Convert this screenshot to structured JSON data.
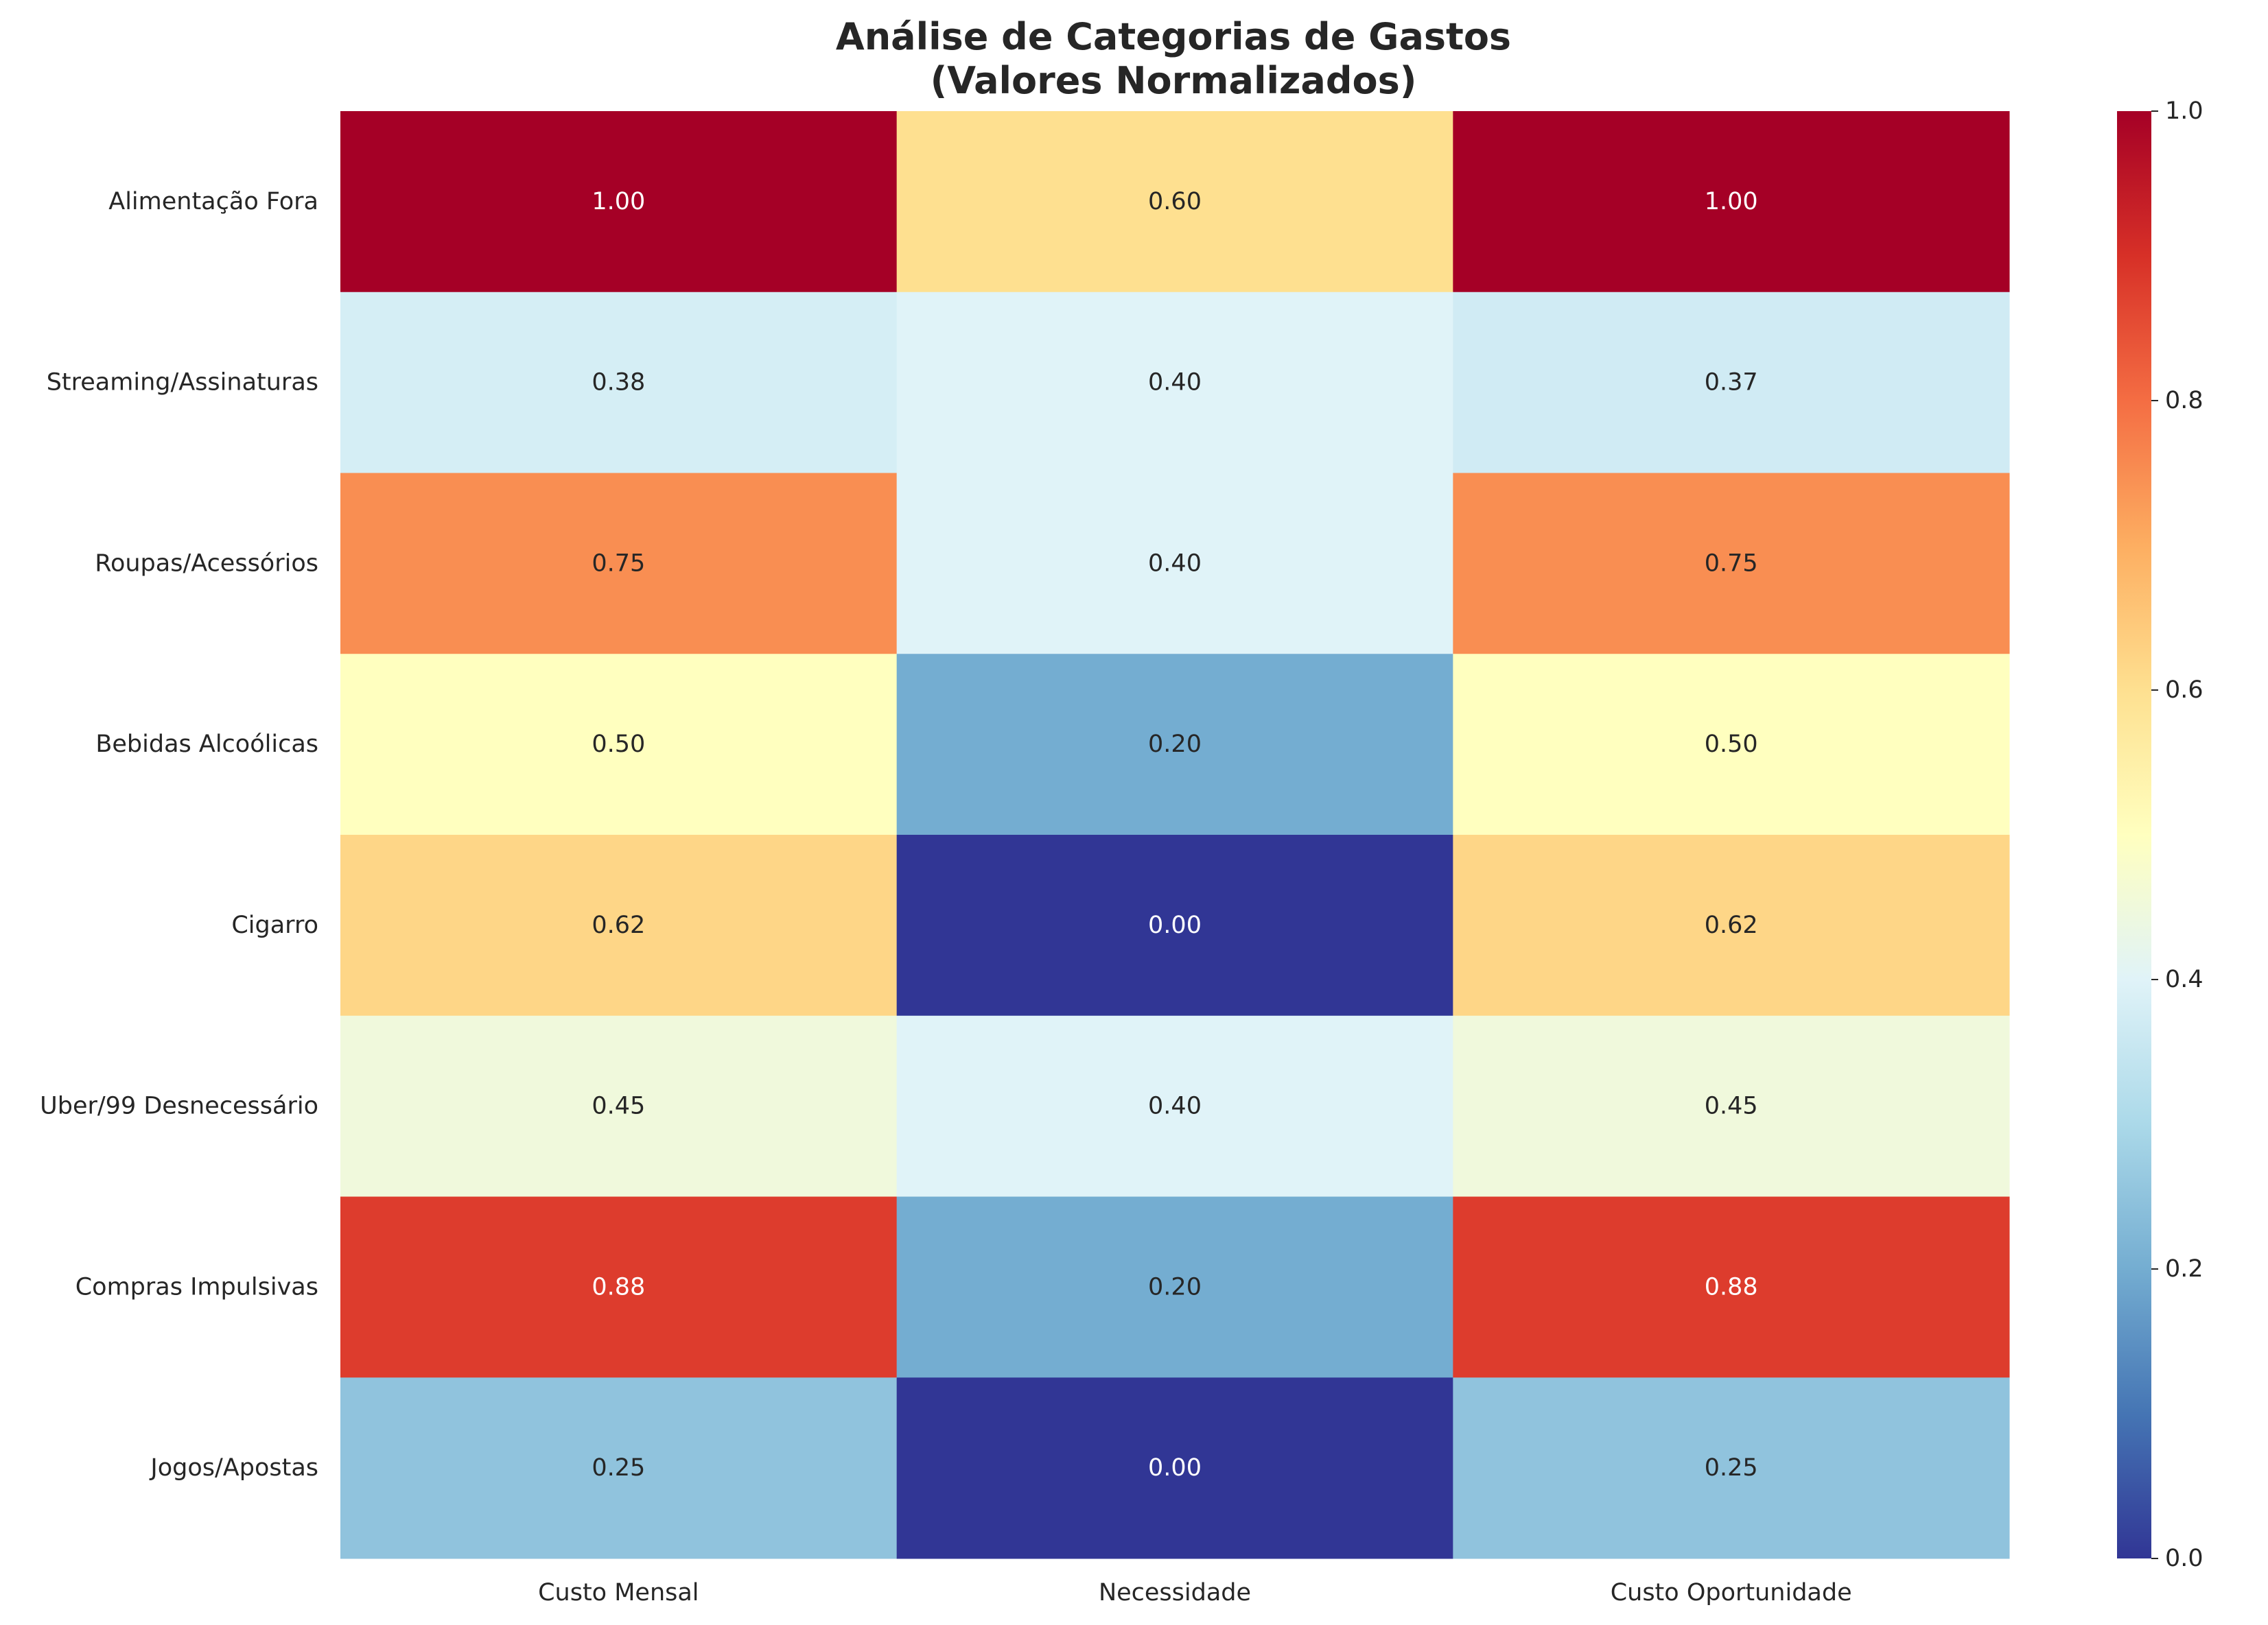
{
  "chart_data": {
    "type": "heatmap",
    "title_lines": [
      "Análise de Categorias de Gastos",
      "(Valores Normalizados)"
    ],
    "rows": [
      "Alimentação Fora",
      "Streaming/Assinaturas",
      "Roupas/Acessórios",
      "Bebidas Alcoólicas",
      "Cigarro",
      "Uber/99 Desnecessário",
      "Compras Impulsivas",
      "Jogos/Apostas"
    ],
    "columns": [
      "Custo Mensal",
      "Necessidade",
      "Custo Oportunidade"
    ],
    "values": [
      [
        1.0,
        0.6,
        1.0
      ],
      [
        0.38,
        0.4,
        0.37
      ],
      [
        0.75,
        0.4,
        0.75
      ],
      [
        0.5,
        0.2,
        0.5
      ],
      [
        0.62,
        0.0,
        0.62
      ],
      [
        0.45,
        0.4,
        0.45
      ],
      [
        0.88,
        0.2,
        0.88
      ],
      [
        0.25,
        0.0,
        0.25
      ]
    ],
    "value_format": "0.00",
    "colormap": "RdYlBu_r",
    "vmin": 0.0,
    "vmax": 1.0,
    "colorbar_ticks": [
      "0.0",
      "0.2",
      "0.4",
      "0.6",
      "0.8",
      "1.0"
    ],
    "grid": false
  }
}
